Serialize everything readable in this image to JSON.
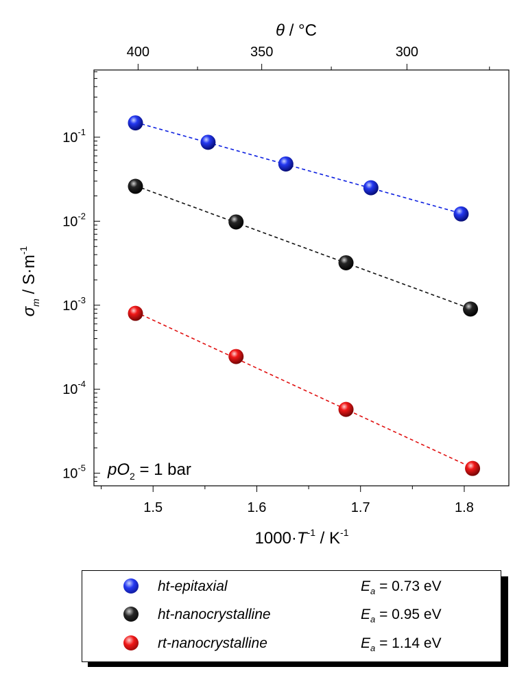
{
  "chart_data": {
    "type": "scatter",
    "xlabel": {
      "main": "1000·",
      "var": "T",
      "sup": "-1",
      "sep": " / ",
      "unit": "K",
      "unit_sup": "-1"
    },
    "ylabel": {
      "var": "σ",
      "sub": "m",
      "sep": " / ",
      "unit": "S·m",
      "unit_sup": "-1"
    },
    "top_axis_label": {
      "var": "θ",
      "sep": " / ",
      "unit": "°C"
    },
    "xlim": [
      1.443,
      1.843
    ],
    "ylim_log10": [
      -5.15,
      -0.2
    ],
    "y_scale": "log",
    "x_ticks": [
      "1.5",
      "1.6",
      "1.7",
      "1.8"
    ],
    "y_tick_exponents": [
      "-1",
      "-2",
      "-3",
      "-4",
      "-5"
    ],
    "y_tick_base": "10",
    "top_ticks_celsius": [
      "400",
      "350",
      "300"
    ],
    "annotation": {
      "var": "pO",
      "sub": "2",
      "text": " = 1 bar"
    },
    "series": [
      {
        "name": "ht-epitaxial",
        "color": "#0b1ee0",
        "ea_var": "E",
        "ea_sub": "a",
        "ea_text": " = 0.73 eV",
        "x": [
          1.483,
          1.553,
          1.628,
          1.71,
          1.797
        ],
        "y": [
          0.148,
          0.087,
          0.048,
          0.025,
          0.0122
        ]
      },
      {
        "name": "ht-nanocrystalline",
        "color": "#111111",
        "ea_var": "E",
        "ea_sub": "a",
        "ea_text": " = 0.95 eV",
        "x": [
          1.483,
          1.58,
          1.686,
          1.806
        ],
        "y": [
          0.026,
          0.0098,
          0.0032,
          0.0009
        ]
      },
      {
        "name": "rt-nanocrystalline",
        "color": "#e01010",
        "ea_var": "E",
        "ea_sub": "a",
        "ea_text": " = 1.14 eV",
        "x": [
          1.483,
          1.58,
          1.686,
          1.808
        ],
        "y": [
          0.0008,
          0.000245,
          5.75e-05,
          1.14e-05
        ]
      }
    ]
  }
}
